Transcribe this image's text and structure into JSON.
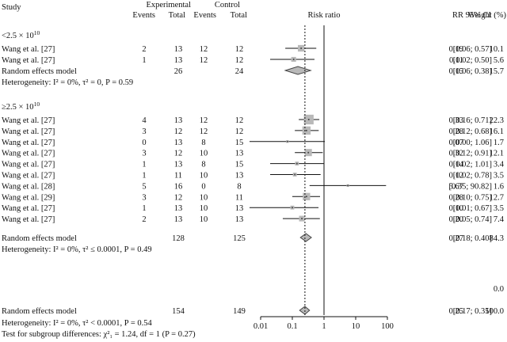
{
  "chart_data": {
    "type": "forest",
    "headers": {
      "study": "Study",
      "experimental": "Experimental",
      "control": "Control",
      "events": "Events",
      "total": "Total",
      "plot_title": "Risk ratio",
      "rr": "RR",
      "ci": "95% CI",
      "weight": "Weight (%)"
    },
    "x_axis": {
      "scale": "log",
      "ticks": [
        "0.01",
        "0.1",
        "1",
        "10",
        "100"
      ],
      "tick_values": [
        0.01,
        0.1,
        1,
        10,
        100
      ],
      "xlim": [
        0.01,
        100
      ],
      "reference_line": 1,
      "overall_dashed_line": 0.25
    },
    "groups": [
      {
        "label_pre": "<2.5 × 10",
        "label_sup": "10",
        "studies": [
          {
            "study": "Wang et al. [27]",
            "e_events": "2",
            "e_total": "13",
            "c_events": "12",
            "c_total": "12",
            "rr": 0.19,
            "lo": 0.06,
            "hi": 0.57,
            "rr_text": "0.19",
            "ci_text": "[0.06; 0.57]",
            "weight": "10.1"
          },
          {
            "study": "Wang et al. [27]",
            "e_events": "1",
            "e_total": "13",
            "c_events": "12",
            "c_total": "12",
            "rr": 0.11,
            "lo": 0.02,
            "hi": 0.5,
            "rr_text": "0.11",
            "ci_text": "[0.02; 0.50]",
            "weight": "5.6"
          }
        ],
        "summary": {
          "label": "Random effects model",
          "e_total": "26",
          "c_total": "24",
          "rr": 0.15,
          "lo": 0.06,
          "hi": 0.38,
          "rr_text": "0.15",
          "ci_text": "[0.06; 0.38]",
          "weight": "15.7"
        },
        "heterogeneity": "Heterogeneity: I² = 0%, τ² = 0, P = 0.59"
      },
      {
        "label_pre": "≥2.5 × 10",
        "label_sup": "10",
        "studies": [
          {
            "study": "Wang et al. [27]",
            "e_events": "4",
            "e_total": "13",
            "c_events": "12",
            "c_total": "12",
            "rr": 0.33,
            "lo": 0.16,
            "hi": 0.71,
            "rr_text": "0.33",
            "ci_text": "[0.16; 0.71]",
            "weight": "22.3"
          },
          {
            "study": "Wang et al. [27]",
            "e_events": "3",
            "e_total": "12",
            "c_events": "12",
            "c_total": "12",
            "rr": 0.28,
            "lo": 0.12,
            "hi": 0.68,
            "rr_text": "0.28",
            "ci_text": "[0.12; 0.68]",
            "weight": "16.1"
          },
          {
            "study": "Wang et al. [27]",
            "e_events": "0",
            "e_total": "13",
            "c_events": "8",
            "c_total": "15",
            "rr": 0.07,
            "lo": 0.0,
            "hi": 1.06,
            "rr_text": "0.07",
            "ci_text": "[0.00; 1.06]",
            "weight": "1.7"
          },
          {
            "study": "Wang et al. [27]",
            "e_events": "3",
            "e_total": "12",
            "c_events": "10",
            "c_total": "13",
            "rr": 0.32,
            "lo": 0.12,
            "hi": 0.91,
            "rr_text": "0.32",
            "ci_text": "[0.12; 0.91]",
            "weight": "12.1"
          },
          {
            "study": "Wang et al. [27]",
            "e_events": "1",
            "e_total": "13",
            "c_events": "8",
            "c_total": "15",
            "rr": 0.14,
            "lo": 0.02,
            "hi": 1.01,
            "rr_text": "0.14",
            "ci_text": "[0.02; 1.01]",
            "weight": "3.4"
          },
          {
            "study": "Wang et al. [27]",
            "e_events": "1",
            "e_total": "11",
            "c_events": "10",
            "c_total": "13",
            "rr": 0.12,
            "lo": 0.02,
            "hi": 0.78,
            "rr_text": "0.12",
            "ci_text": "[0.02; 0.78]",
            "weight": "3.5"
          },
          {
            "study": "Wang et al. [28]",
            "e_events": "5",
            "e_total": "16",
            "c_events": "0",
            "c_total": "8",
            "rr": 5.67,
            "lo": 0.35,
            "hi": 90.82,
            "rr_text": "5.67",
            "ci_text": "[0.35; 90.82]",
            "weight": "1.6"
          },
          {
            "study": "Wang et al. [29]",
            "e_events": "3",
            "e_total": "12",
            "c_events": "10",
            "c_total": "11",
            "rr": 0.28,
            "lo": 0.1,
            "hi": 0.75,
            "rr_text": "0.28",
            "ci_text": "[0.10; 0.75]",
            "weight": "12.7"
          },
          {
            "study": "Wang et al. [27]",
            "e_events": "1",
            "e_total": "13",
            "c_events": "10",
            "c_total": "13",
            "rr": 0.1,
            "lo": 0.01,
            "hi": 0.67,
            "rr_text": "0.10",
            "ci_text": "[0.01; 0.67]",
            "weight": "3.5"
          },
          {
            "study": "Wang et al. [27]",
            "e_events": "2",
            "e_total": "13",
            "c_events": "10",
            "c_total": "13",
            "rr": 0.2,
            "lo": 0.05,
            "hi": 0.74,
            "rr_text": "0.20",
            "ci_text": "[0.05; 0.74]",
            "weight": "7.4"
          }
        ],
        "summary": {
          "label": "Random effects model",
          "e_total": "128",
          "c_total": "125",
          "rr": 0.27,
          "lo": 0.18,
          "hi": 0.4,
          "rr_text": "0.27",
          "ci_text": "[0.18; 0.40]",
          "weight": "84.3"
        },
        "heterogeneity": "Heterogeneity: I² = 0%, τ² ≤ 0.0001, P = 0.49"
      }
    ],
    "extra_weight": "0.0",
    "overall": {
      "label": "Random effects model",
      "e_total": "154",
      "c_total": "149",
      "rr": 0.25,
      "lo": 0.17,
      "hi": 0.35,
      "rr_text": "0.25",
      "ci_text": "[0.17; 0.35]",
      "weight": "100.0"
    },
    "overall_heterogeneity": "Heterogeneity: I² = 0%, τ² < 0.0001, P = 0.54",
    "subgroup_test": "Test for subgroup differences: χ²₁ = 1.24, df = 1 (P = 0.27)"
  }
}
